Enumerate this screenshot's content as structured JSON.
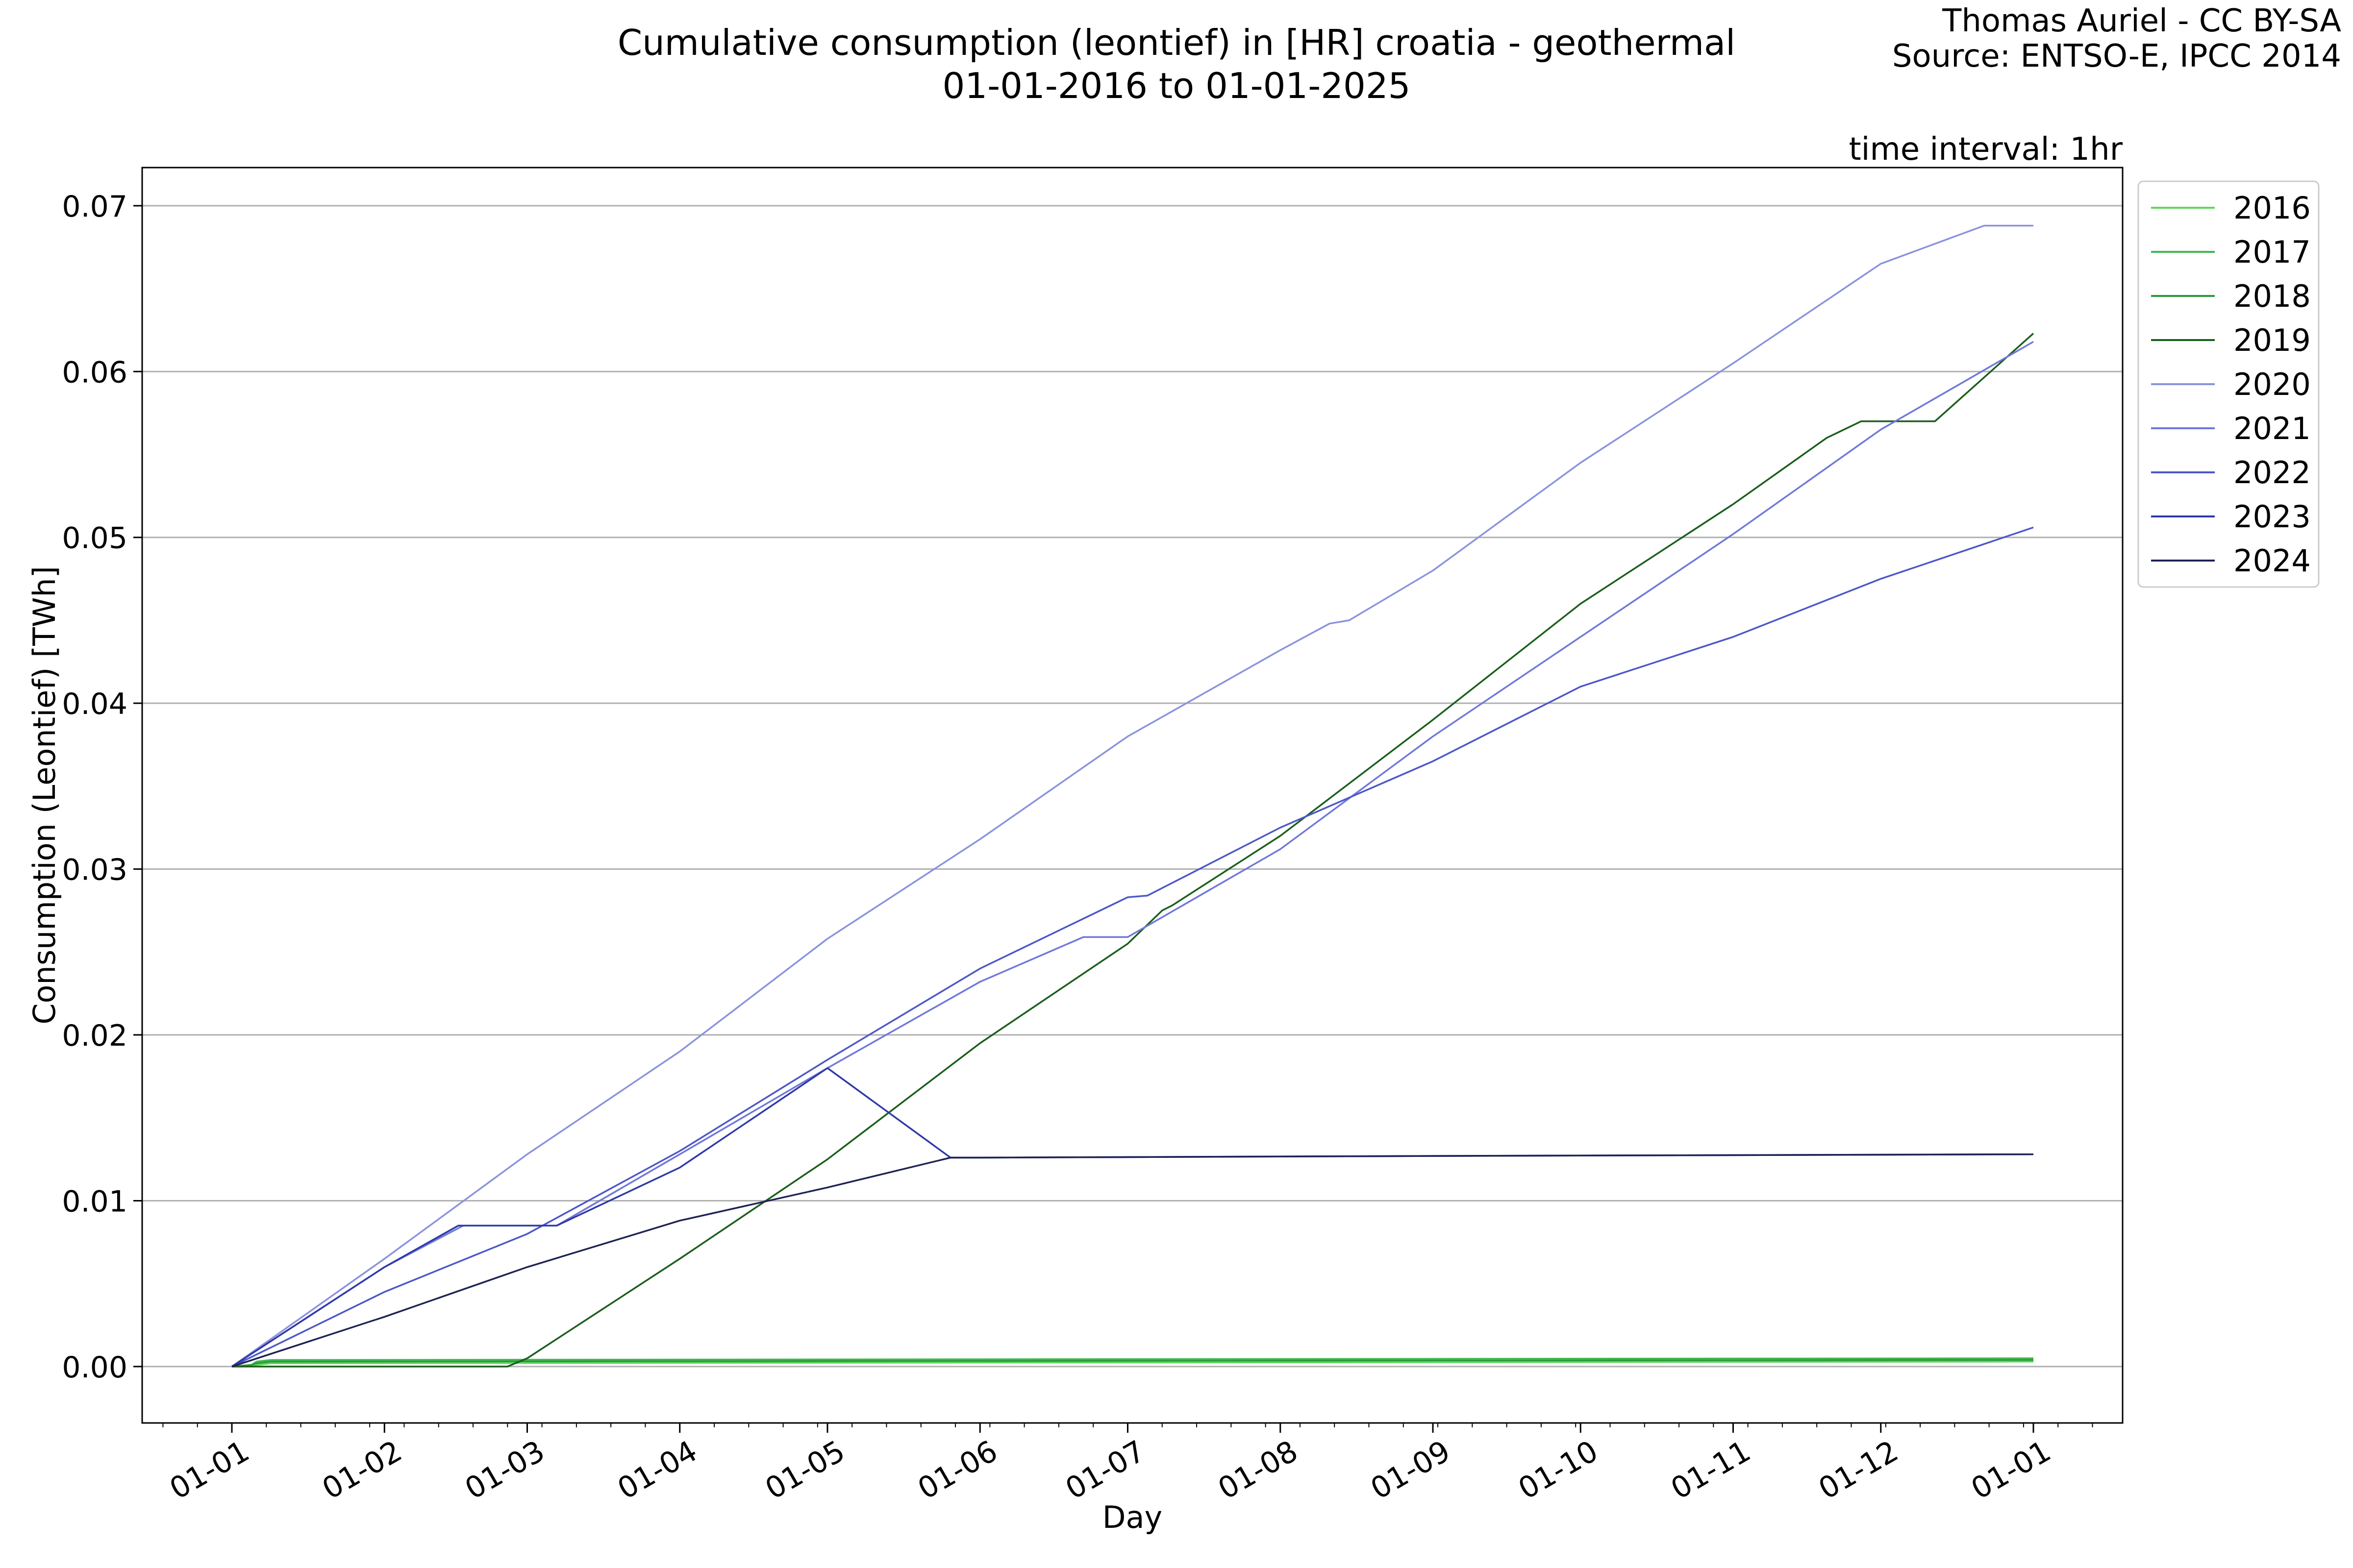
{
  "chart_data": {
    "type": "line",
    "title": "Cumulative consumption (leontief) in [HR] croatia - geothermal",
    "subtitle": "01-01-2016 to 01-01-2025",
    "credit": "Thomas Auriel - CC BY-SA",
    "source": "Source: ENTSO-E, IPCC 2014",
    "interval_label": "time interval: 1hr",
    "xlabel": "Day",
    "ylabel": "Consumption (Leontief) [TWh]",
    "x_domain": [
      "01-01",
      "01-01 (next year)"
    ],
    "xticks": [
      "01-01",
      "01-02",
      "01-03",
      "01-04",
      "01-05",
      "01-06",
      "01-07",
      "01-08",
      "01-09",
      "01-10",
      "01-11",
      "01-12",
      "01-01"
    ],
    "ylim": [
      -0.0034,
      0.0723
    ],
    "yticks": [
      0.0,
      0.01,
      0.02,
      0.03,
      0.04,
      0.05,
      0.06,
      0.07
    ],
    "ytick_labels": [
      "0.00",
      "0.01",
      "0.02",
      "0.03",
      "0.04",
      "0.05",
      "0.06",
      "0.07"
    ],
    "grid": "horizontal",
    "legend_position": "outside-right-top",
    "series": [
      {
        "name": "2016",
        "color": "#5ed65e",
        "points": [
          [
            "01-01",
            0
          ],
          [
            "01-03",
            0
          ],
          [
            "01-06",
            0.0001
          ],
          [
            "01-09",
            0.0002
          ],
          [
            "01-01",
            0.0003
          ]
        ]
      },
      {
        "name": "2017",
        "color": "#3fb84f",
        "points": [
          [
            "01-01",
            0
          ],
          [
            "01-05",
            0.0001
          ],
          [
            "01-06",
            0.0003
          ],
          [
            "01-09",
            0.0004
          ],
          [
            "01-01",
            0.0005
          ]
        ]
      },
      {
        "name": "2018",
        "color": "#2a9a3a",
        "points": [
          [
            "01-01",
            0
          ],
          [
            "01-05",
            0.0001
          ],
          [
            "01-06",
            0.0002
          ],
          [
            "01-09",
            0.0003
          ],
          [
            "01-01",
            0.0004
          ]
        ]
      },
      {
        "name": "2019",
        "color": "#1a5e1a",
        "points": [
          [
            "01-01",
            0
          ],
          [
            "02-26",
            0
          ],
          [
            "03-01",
            0.0005
          ],
          [
            "04-01",
            0.0065
          ],
          [
            "05-01",
            0.0125
          ],
          [
            "06-01",
            0.0195
          ],
          [
            "07-01",
            0.0255
          ],
          [
            "07-08",
            0.0275
          ],
          [
            "07-10",
            0.0278
          ],
          [
            "08-01",
            0.032
          ],
          [
            "09-01",
            0.039
          ],
          [
            "10-01",
            0.046
          ],
          [
            "11-01",
            0.052
          ],
          [
            "11-20",
            0.056
          ],
          [
            "11-27",
            0.057
          ],
          [
            "12-12",
            0.057
          ],
          [
            "01-01",
            0.0623
          ]
        ]
      },
      {
        "name": "2020",
        "color": "#8a92de",
        "points": [
          [
            "01-01",
            0
          ],
          [
            "02-01",
            0.0065
          ],
          [
            "03-01",
            0.0128
          ],
          [
            "04-01",
            0.019
          ],
          [
            "05-01",
            0.0258
          ],
          [
            "06-01",
            0.0318
          ],
          [
            "07-01",
            0.038
          ],
          [
            "08-01",
            0.0432
          ],
          [
            "08-11",
            0.0448
          ],
          [
            "08-15",
            0.045
          ],
          [
            "09-01",
            0.048
          ],
          [
            "10-01",
            0.0545
          ],
          [
            "11-01",
            0.0605
          ],
          [
            "12-01",
            0.0665
          ],
          [
            "12-22",
            0.0688
          ],
          [
            "01-01",
            0.0688
          ]
        ]
      },
      {
        "name": "2021",
        "color": "#6f78da",
        "points": [
          [
            "01-01",
            0
          ],
          [
            "02-01",
            0.006
          ],
          [
            "02-17",
            0.0085
          ],
          [
            "03-07",
            0.0085
          ],
          [
            "04-01",
            0.0128
          ],
          [
            "05-01",
            0.018
          ],
          [
            "06-01",
            0.0232
          ],
          [
            "06-22",
            0.0259
          ],
          [
            "07-01",
            0.0259
          ],
          [
            "08-01",
            0.0312
          ],
          [
            "09-01",
            0.038
          ],
          [
            "10-01",
            0.044
          ],
          [
            "11-01",
            0.0502
          ],
          [
            "12-01",
            0.0565
          ],
          [
            "01-01",
            0.0618
          ]
        ]
      },
      {
        "name": "2022",
        "color": "#4d57c8",
        "points": [
          [
            "01-01",
            0
          ],
          [
            "02-01",
            0.0045
          ],
          [
            "03-01",
            0.008
          ],
          [
            "04-01",
            0.013
          ],
          [
            "05-01",
            0.0185
          ],
          [
            "06-01",
            0.024
          ],
          [
            "07-01",
            0.0283
          ],
          [
            "07-05",
            0.0284
          ],
          [
            "08-01",
            0.0325
          ],
          [
            "09-01",
            0.0365
          ],
          [
            "10-01",
            0.041
          ],
          [
            "11-01",
            0.044
          ],
          [
            "12-01",
            0.0475
          ],
          [
            "01-01",
            0.0506
          ]
        ]
      },
      {
        "name": "2023",
        "color": "#2e39a8",
        "points": [
          [
            "01-01",
            0
          ],
          [
            "02-01",
            0.006
          ],
          [
            "02-16",
            0.0085
          ],
          [
            "03-07",
            0.0085
          ],
          [
            "04-01",
            0.012
          ],
          [
            "05-01",
            0.018
          ],
          [
            "05-26",
            0.0126
          ],
          [
            "06-01",
            0.0126
          ],
          [
            "09-01",
            0.0127
          ],
          [
            "01-01",
            0.0128
          ]
        ]
      },
      {
        "name": "2024",
        "color": "#1e2254",
        "points": [
          [
            "01-01",
            0
          ],
          [
            "02-01",
            0.003
          ],
          [
            "03-01",
            0.006
          ],
          [
            "04-01",
            0.0088
          ],
          [
            "05-01",
            0.0108
          ],
          [
            "05-26",
            0.0126
          ],
          [
            "06-01",
            0.0126
          ],
          [
            "09-01",
            0.0127
          ],
          [
            "01-01",
            0.0128
          ]
        ]
      }
    ]
  }
}
